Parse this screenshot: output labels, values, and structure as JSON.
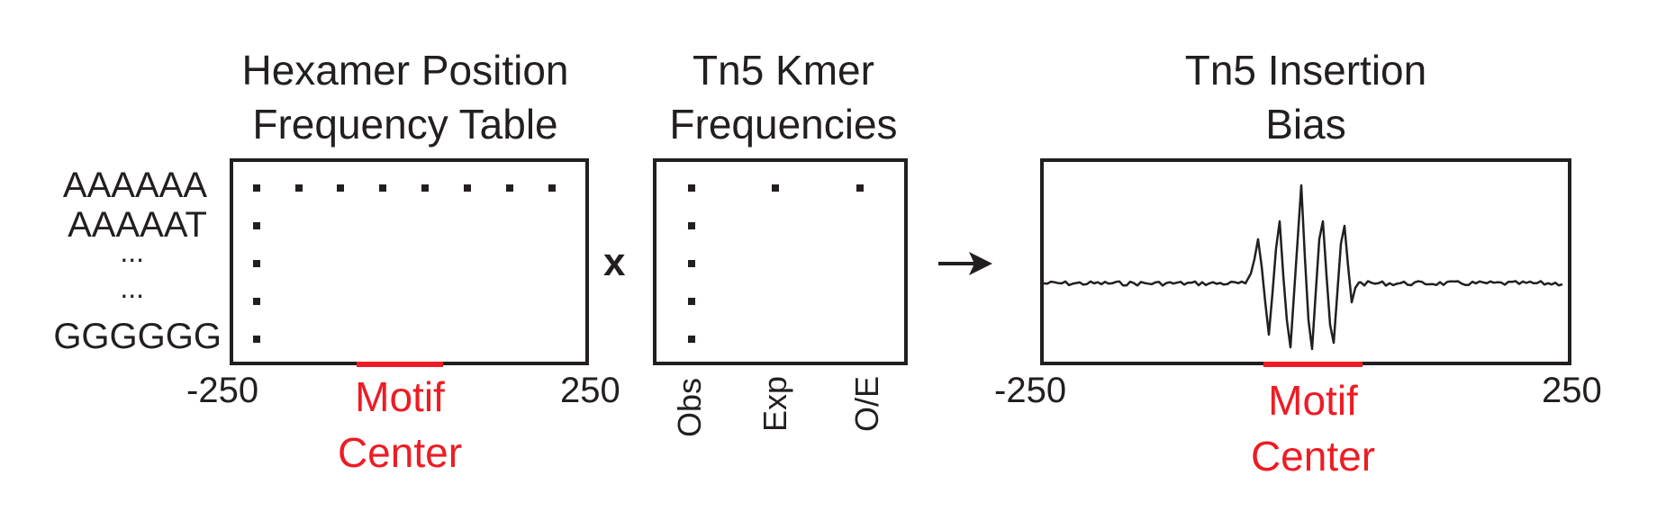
{
  "panels": {
    "hexamer": {
      "title_line1": "Hexamer Position",
      "title_line2": "Frequency Table",
      "row_labels": [
        "AAAAAA",
        "AAAAAT",
        "...",
        "...",
        "GGGGGG"
      ],
      "tick_left": "-250",
      "tick_right": "250",
      "motif_line1": "Motif",
      "motif_line2": "Center"
    },
    "kmer": {
      "title_line1": "Tn5 Kmer",
      "title_line2": "Frequencies",
      "col_labels": [
        "Obs",
        "Exp",
        "O/E"
      ]
    },
    "bias": {
      "title_line1": "Tn5 Insertion",
      "title_line2": "Bias",
      "tick_left": "-250",
      "tick_right": "250",
      "motif_line1": "Motif",
      "motif_line2": "Center"
    }
  },
  "operators": {
    "multiply": "x",
    "arrow": "arrow-right-icon"
  },
  "colors": {
    "text": "#231f20",
    "highlight": "#ed1c24"
  }
}
